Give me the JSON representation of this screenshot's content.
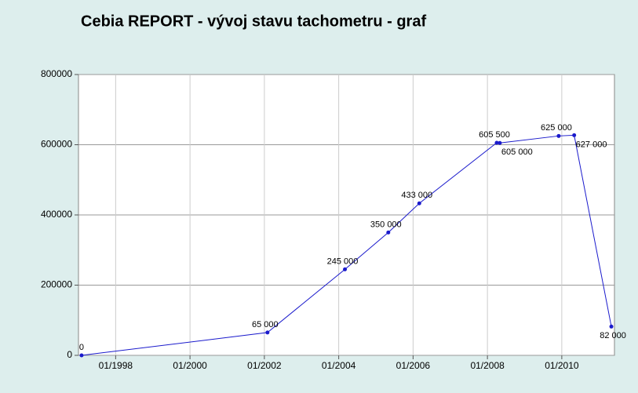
{
  "chart_data": {
    "type": "line",
    "title": "Cebia REPORT - vývoj stavu tachometru - graf",
    "x": [
      "1997-02",
      "2002-02",
      "2004-03",
      "2005-05",
      "2006-03",
      "2008-04",
      "2008-05",
      "2009-12",
      "2010-05",
      "2011-05"
    ],
    "series": [
      {
        "color": "#1a1acc",
        "values": [
          0,
          65000,
          245000,
          350000,
          433000,
          605500,
          605000,
          625000,
          627000,
          82000
        ],
        "value_labels": [
          "0",
          "65 000",
          "245 000",
          "350 000",
          "433 000",
          "605 500",
          "605 000",
          "625 000",
          "627 000",
          "82 000"
        ]
      }
    ],
    "xlim": [
      "1997-01",
      "2011-06"
    ],
    "xticks": [
      {
        "value": "1998-01",
        "label": "01/1998"
      },
      {
        "value": "2000-01",
        "label": "01/2000"
      },
      {
        "value": "2002-01",
        "label": "01/2002"
      },
      {
        "value": "2004-01",
        "label": "01/2004"
      },
      {
        "value": "2006-01",
        "label": "01/2006"
      },
      {
        "value": "2008-01",
        "label": "01/2008"
      },
      {
        "value": "2010-01",
        "label": "01/2010"
      }
    ],
    "ylim": [
      0,
      800000
    ],
    "yticks": [
      0,
      200000,
      400000,
      600000,
      800000
    ],
    "grid": true
  }
}
